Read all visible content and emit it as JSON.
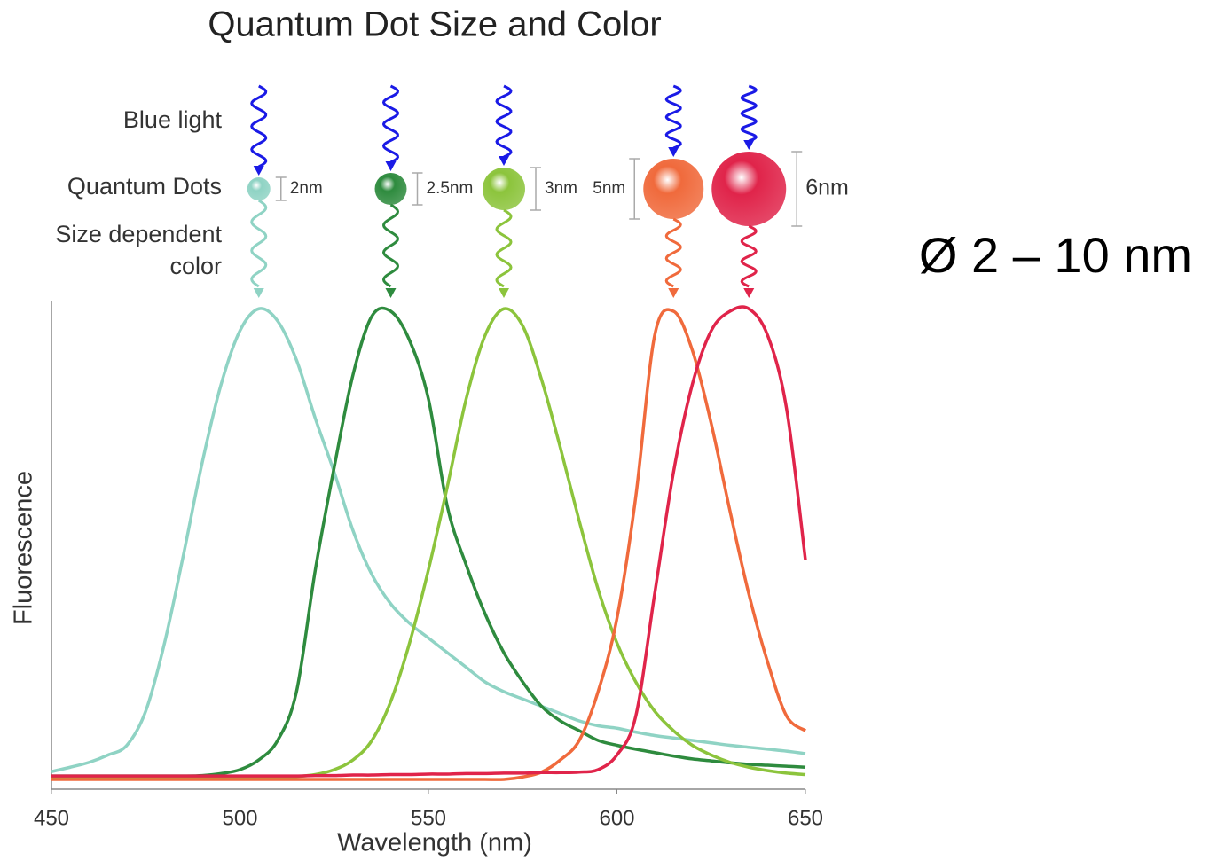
{
  "chart_data": {
    "type": "line",
    "title": "Quantum Dot Size and Color",
    "x_label": "Wavelength (nm)",
    "y_label": "Fluorescence",
    "row_labels": [
      "Blue light",
      "Quantum Dots",
      "Size dependent",
      "color"
    ],
    "note": "Ø 2 – 10 nm",
    "x": [
      450,
      455,
      460,
      465,
      470,
      475,
      480,
      485,
      490,
      495,
      500,
      505,
      510,
      515,
      520,
      525,
      530,
      535,
      540,
      545,
      550,
      555,
      560,
      565,
      570,
      575,
      580,
      585,
      590,
      595,
      600,
      605,
      610,
      615,
      620,
      625,
      630,
      635,
      640,
      645,
      650
    ],
    "series": [
      {
        "name": "2nm",
        "color": "#8fd3c4",
        "values": [
          0.036,
          0.045,
          0.055,
          0.07,
          0.09,
          0.16,
          0.3,
          0.48,
          0.67,
          0.83,
          0.94,
          0.985,
          0.96,
          0.88,
          0.76,
          0.65,
          0.53,
          0.44,
          0.38,
          0.34,
          0.31,
          0.28,
          0.25,
          0.22,
          0.2,
          0.185,
          0.17,
          0.155,
          0.14,
          0.13,
          0.125,
          0.117,
          0.11,
          0.105,
          0.1,
          0.095,
          0.09,
          0.086,
          0.082,
          0.078,
          0.073
        ]
      },
      {
        "name": "2.5nm",
        "color": "#2e8b3e",
        "values": [
          0.027,
          0.027,
          0.027,
          0.027,
          0.027,
          0.027,
          0.027,
          0.027,
          0.028,
          0.032,
          0.04,
          0.06,
          0.1,
          0.2,
          0.45,
          0.66,
          0.85,
          0.97,
          0.98,
          0.92,
          0.8,
          0.58,
          0.46,
          0.36,
          0.28,
          0.22,
          0.17,
          0.14,
          0.12,
          0.1,
          0.09,
          0.082,
          0.075,
          0.068,
          0.062,
          0.058,
          0.054,
          0.051,
          0.049,
          0.047,
          0.045
        ]
      },
      {
        "name": "3nm",
        "color": "#8cc43c",
        "values": [
          0.025,
          0.025,
          0.025,
          0.025,
          0.025,
          0.025,
          0.025,
          0.025,
          0.025,
          0.025,
          0.025,
          0.025,
          0.025,
          0.026,
          0.03,
          0.04,
          0.06,
          0.1,
          0.18,
          0.3,
          0.45,
          0.62,
          0.8,
          0.93,
          0.985,
          0.95,
          0.84,
          0.7,
          0.55,
          0.41,
          0.3,
          0.22,
          0.16,
          0.12,
          0.09,
          0.07,
          0.055,
          0.045,
          0.038,
          0.033,
          0.03
        ]
      },
      {
        "name": "5nm",
        "color": "#f06a3c",
        "values": [
          0.02,
          0.02,
          0.02,
          0.02,
          0.02,
          0.02,
          0.02,
          0.02,
          0.02,
          0.02,
          0.02,
          0.02,
          0.02,
          0.02,
          0.02,
          0.02,
          0.02,
          0.02,
          0.02,
          0.02,
          0.02,
          0.02,
          0.02,
          0.02,
          0.02,
          0.025,
          0.035,
          0.06,
          0.1,
          0.2,
          0.35,
          0.6,
          0.93,
          0.98,
          0.9,
          0.75,
          0.57,
          0.4,
          0.26,
          0.15,
          0.12
        ]
      },
      {
        "name": "6nm",
        "color": "#e0244a",
        "values": [
          0.027,
          0.027,
          0.027,
          0.027,
          0.027,
          0.027,
          0.027,
          0.027,
          0.027,
          0.027,
          0.027,
          0.027,
          0.027,
          0.027,
          0.028,
          0.028,
          0.029,
          0.029,
          0.03,
          0.03,
          0.031,
          0.031,
          0.032,
          0.032,
          0.033,
          0.033,
          0.034,
          0.034,
          0.035,
          0.04,
          0.07,
          0.15,
          0.4,
          0.65,
          0.83,
          0.94,
          0.98,
          0.985,
          0.93,
          0.78,
          0.47
        ]
      }
    ],
    "xlim": [
      450,
      650
    ],
    "ylim": [
      0,
      1
    ],
    "xticks": [
      450,
      500,
      550,
      600,
      650
    ]
  }
}
